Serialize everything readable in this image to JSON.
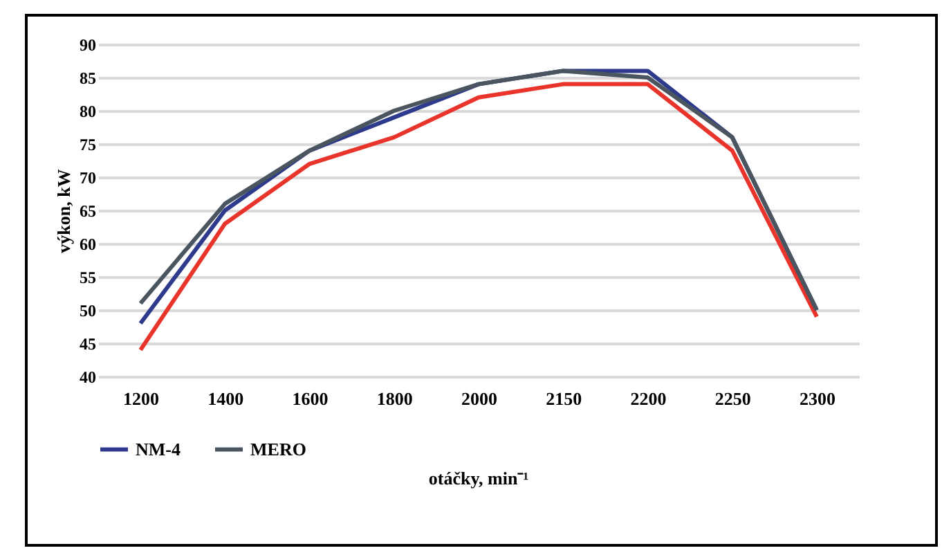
{
  "chart_data": {
    "type": "line",
    "xlabel": "otáčky, min⁻¹",
    "ylabel": "výkon, kW",
    "categories": [
      "1200",
      "1400",
      "1600",
      "1800",
      "2000",
      "2150",
      "2200",
      "2250",
      "2300"
    ],
    "series": [
      {
        "name": "NM-4",
        "color": "#2e3a8c",
        "values": [
          48,
          65,
          74,
          79,
          84,
          86,
          86,
          76,
          50
        ]
      },
      {
        "color": "#e8342a",
        "values": [
          44,
          63,
          72,
          76,
          82,
          84,
          84,
          74,
          49
        ]
      },
      {
        "name": "MERO",
        "color": "#4a5560",
        "values": [
          51,
          66,
          74,
          80,
          84,
          86,
          85,
          76,
          50
        ]
      }
    ],
    "ylim": [
      40,
      90
    ],
    "yticks": [
      40,
      45,
      50,
      55,
      60,
      65,
      70,
      75,
      80,
      85,
      90
    ],
    "grid": "y",
    "legend": "bottom",
    "marker": "none",
    "line_style": "solid"
  }
}
